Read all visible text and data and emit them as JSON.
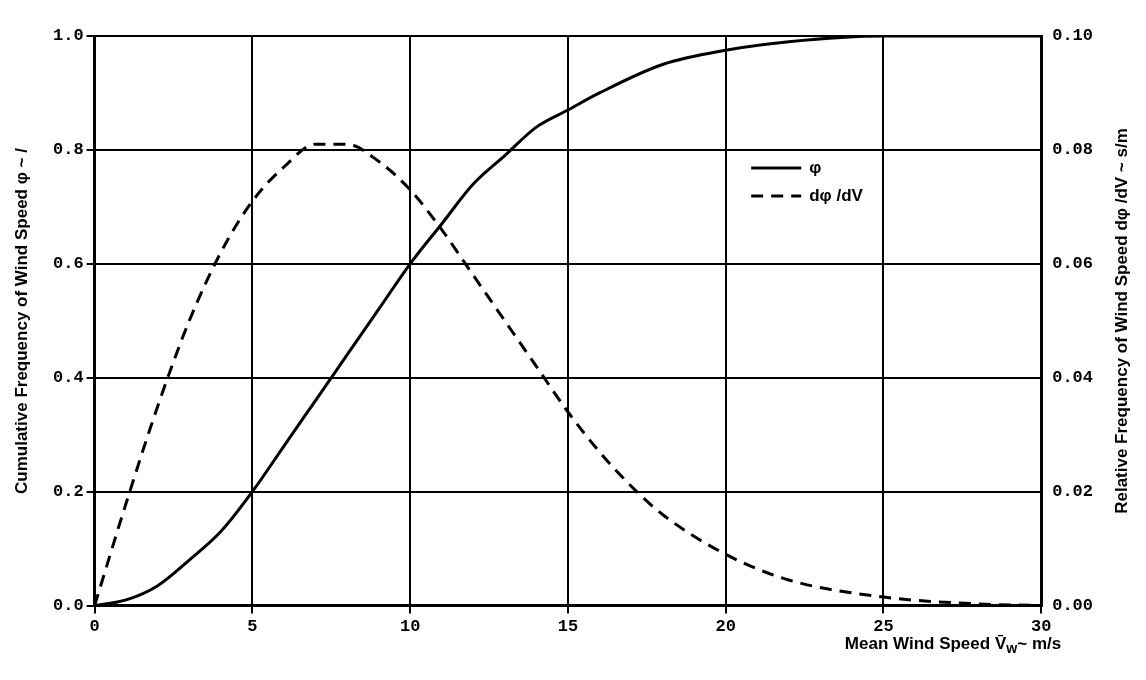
{
  "chart_data": {
    "type": "line",
    "xlabel": "Mean Wind Speed V̄$_{w}$~ m/s",
    "ylabel": "Cumulative Frequency of Wind Speed φ ~ /",
    "y2label": "Relative Frequency of Wind Speed dφ /dV ~ s/m",
    "xlim": [
      0,
      30
    ],
    "xticks": [
      0,
      5,
      10,
      15,
      20,
      25,
      30
    ],
    "ylim": [
      0,
      1
    ],
    "yticks": [
      {
        "value": 0,
        "label": "0.0"
      },
      {
        "value": 0.2,
        "label": "0.2"
      },
      {
        "value": 0.4,
        "label": "0.4"
      },
      {
        "value": 0.6,
        "label": "0.6"
      },
      {
        "value": 0.8,
        "label": "0.8"
      },
      {
        "value": 1,
        "label": "1.0"
      }
    ],
    "y2lim": [
      0,
      0.1
    ],
    "y2ticks": [
      {
        "value": 0,
        "label": "0.00"
      },
      {
        "value": 0.02,
        "label": "0.02"
      },
      {
        "value": 0.04,
        "label": "0.04"
      },
      {
        "value": 0.06,
        "label": "0.06"
      },
      {
        "value": 0.08,
        "label": "0.08"
      },
      {
        "value": 0.1,
        "label": "0.10"
      }
    ],
    "grid": true,
    "legend": "top right",
    "marker": "none",
    "series": [
      {
        "name": "φ",
        "color": "#000000",
        "line_style": "solid",
        "x": [
          0,
          1,
          2,
          3,
          4,
          5,
          6,
          7,
          8,
          9,
          10,
          11,
          12,
          13,
          14,
          15,
          16,
          18,
          20,
          22,
          25,
          30
        ],
        "values": [
          0,
          0.01,
          0.035,
          0.08,
          0.13,
          0.2,
          0.28,
          0.36,
          0.44,
          0.52,
          0.6,
          0.67,
          0.74,
          0.79,
          0.84,
          0.87,
          0.9,
          0.95,
          0.975,
          0.99,
          1.0,
          1.0
        ]
      },
      {
        "name": "dφ /dV",
        "color": "#000000",
        "line_style": "dashed",
        "axis": "y2",
        "x": [
          0,
          1,
          2,
          3,
          4,
          5,
          6,
          7,
          8,
          9,
          10,
          11,
          12,
          13,
          14,
          15,
          16,
          17,
          18,
          20,
          22,
          25,
          28,
          30
        ],
        "values": [
          0,
          0.018,
          0.035,
          0.05,
          0.062,
          0.071,
          0.077,
          0.081,
          0.081,
          0.078,
          0.073,
          0.066,
          0.058,
          0.05,
          0.042,
          0.034,
          0.027,
          0.021,
          0.016,
          0.009,
          0.0045,
          0.0015,
          0.0003,
          0
        ]
      }
    ]
  }
}
